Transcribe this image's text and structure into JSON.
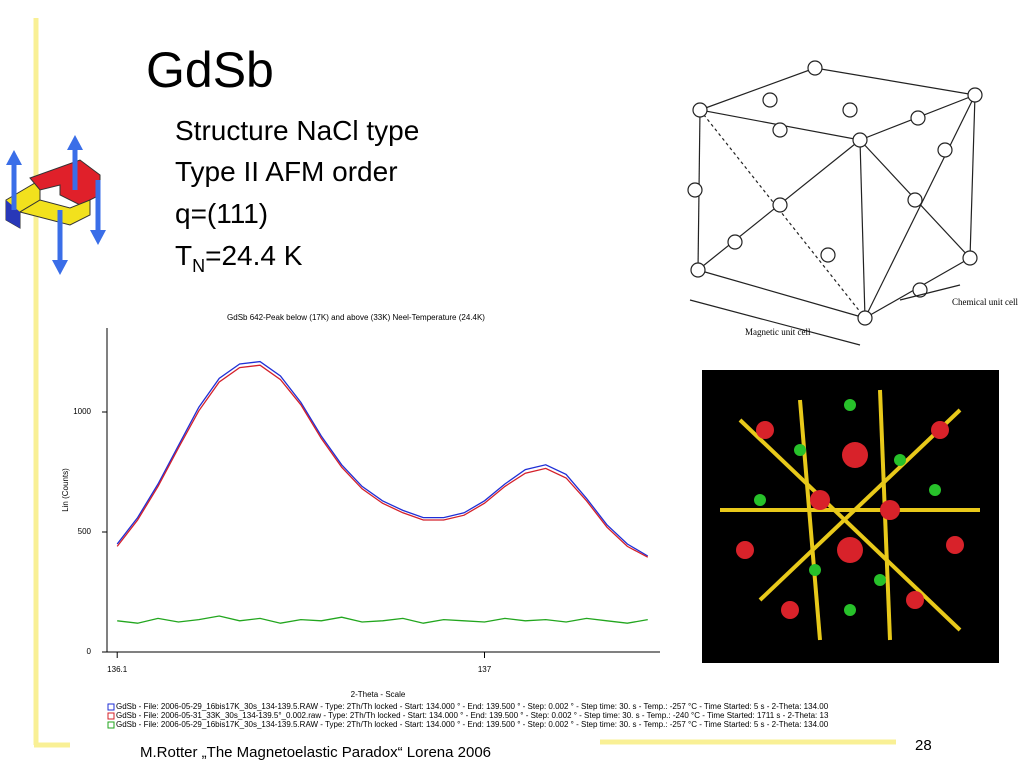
{
  "title": "GdSb",
  "bullets": [
    "Structure  NaCl type",
    "Type II AFM order",
    "q=(111)"
  ],
  "tn": {
    "symbol": "T",
    "subscript": "N",
    "rest": "=24.4 K"
  },
  "figure_labels": {
    "chemical": "Chemical unit cell",
    "magnetic": "Magnetic unit cell"
  },
  "chart_data": {
    "type": "line",
    "title": "GdSb 642-Peak below (17K) and above (33K) Neel-Temperature (24.4K)",
    "x_label": "2-Theta - Scale",
    "y_label": "Lin (Counts)",
    "x": [
      136.1,
      136.15,
      136.2,
      136.25,
      136.3,
      136.35,
      136.4,
      136.45,
      136.5,
      136.55,
      136.6,
      136.65,
      136.7,
      136.75,
      136.8,
      136.85,
      136.9,
      136.95,
      137.0,
      137.05,
      137.1,
      137.15,
      137.2,
      137.25,
      137.3,
      137.35,
      137.4
    ],
    "series": [
      {
        "name": "GdSb - File: 2006-05-29_16bis17K_30s_134-139.5.RAW - Type: 2Th/Th locked - Start: 134.000 ° - End: 139.500 ° - Step: 0.002 ° - Step time: 30. s - Temp.: -257 °C - Time Started: 5 s - 2-Theta: 134.00",
        "color": "#1f2fd6",
        "values": [
          450,
          560,
          700,
          860,
          1020,
          1140,
          1200,
          1210,
          1150,
          1040,
          900,
          780,
          690,
          630,
          590,
          560,
          560,
          580,
          630,
          700,
          760,
          780,
          740,
          640,
          530,
          450,
          400
        ]
      },
      {
        "name": "GdSb - File: 2006-05-31_33K_30s_134-139.5°_0.002.raw - Type: 2Th/Th locked - Start: 134.000 ° - End: 139.500 ° - Step: 0.002 ° - Step time: 30. s - Temp.: -240 °C - Time Started: 1711 s - 2-Theta: 13",
        "color": "#d4202a",
        "values": [
          440,
          550,
          690,
          850,
          1005,
          1125,
          1185,
          1195,
          1135,
          1030,
          890,
          770,
          680,
          620,
          580,
          550,
          550,
          570,
          620,
          690,
          745,
          765,
          725,
          630,
          520,
          440,
          395
        ]
      },
      {
        "name": "GdSb - File: 2006-05-29_16bis17K_30s_134-139.5.RAW - Type: 2Th/Th locked - Start: 134.000 ° - End: 139.500 ° - Step: 0.002 ° - Step time: 30. s - Temp.: -257 °C - Time Started: 5 s - 2-Theta: 134.00",
        "color": "#22a61e",
        "values": [
          130,
          120,
          140,
          125,
          135,
          150,
          130,
          140,
          120,
          135,
          130,
          145,
          125,
          130,
          140,
          120,
          135,
          130,
          125,
          140,
          130,
          135,
          125,
          140,
          130,
          120,
          135
        ]
      }
    ],
    "xlim": [
      136.075,
      137.43
    ],
    "xticks": [
      136.1,
      137
    ],
    "ylim": [
      0,
      1350
    ],
    "yticks": [
      0,
      500,
      1000
    ]
  },
  "footer": {
    "text": "M.Rotter „The Magnetoelastic Paradox“ Lorena 2006",
    "page": "28"
  }
}
